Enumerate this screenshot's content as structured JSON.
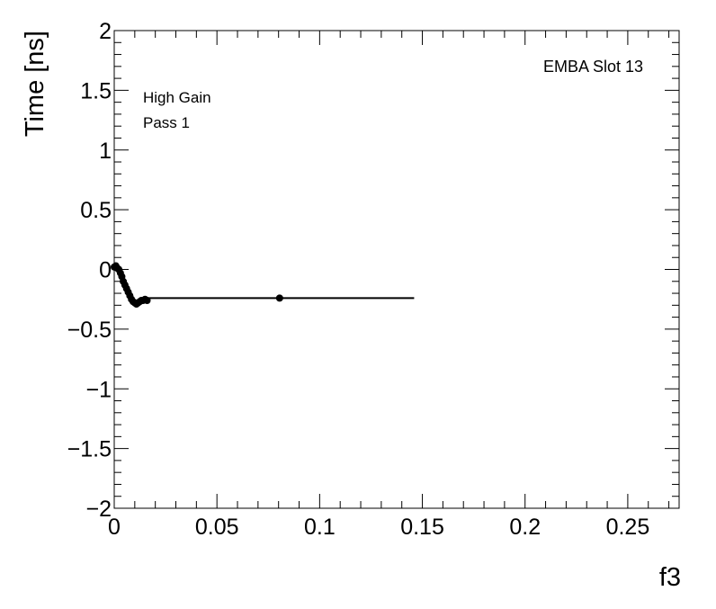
{
  "chart_data": {
    "type": "scatter",
    "title": "",
    "xlabel": "f3",
    "ylabel": "Time [ns]",
    "xlim": [
      0,
      0.275
    ],
    "ylim": [
      -2,
      2
    ],
    "x_ticks": [
      "0",
      "0.05",
      "0.1",
      "0.15",
      "0.2",
      "0.25"
    ],
    "x_tick_values": [
      0,
      0.05,
      0.1,
      0.15,
      0.2,
      0.25
    ],
    "y_ticks": [
      "2",
      "1.5",
      "1",
      "0.5",
      "0",
      "−0.5",
      "−1",
      "−1.5",
      "−2"
    ],
    "y_tick_values": [
      2,
      1.5,
      1,
      0.5,
      0,
      -0.5,
      -1,
      -1.5,
      -2
    ],
    "annotations": {
      "top_right": "EMBA Slot 13",
      "line1": "High Gain",
      "line2": "Pass 1"
    },
    "grid": false,
    "marker_color": "#000000",
    "series": [
      {
        "points": [
          {
            "x": 0.0,
            "y": 0.02
          },
          {
            "x": 0.0008,
            "y": 0.03
          },
          {
            "x": 0.0015,
            "y": 0.01
          },
          {
            "x": 0.0022,
            "y": 0.0
          },
          {
            "x": 0.003,
            "y": -0.03
          },
          {
            "x": 0.0037,
            "y": -0.06
          },
          {
            "x": 0.0044,
            "y": -0.1
          },
          {
            "x": 0.0052,
            "y": -0.13
          },
          {
            "x": 0.006,
            "y": -0.16
          },
          {
            "x": 0.0068,
            "y": -0.19
          },
          {
            "x": 0.0076,
            "y": -0.22
          },
          {
            "x": 0.0084,
            "y": -0.25
          },
          {
            "x": 0.0092,
            "y": -0.27
          },
          {
            "x": 0.01,
            "y": -0.28
          },
          {
            "x": 0.0108,
            "y": -0.29
          },
          {
            "x": 0.0116,
            "y": -0.28
          },
          {
            "x": 0.0124,
            "y": -0.27
          },
          {
            "x": 0.0132,
            "y": -0.26
          },
          {
            "x": 0.014,
            "y": -0.26
          },
          {
            "x": 0.015,
            "y": -0.25
          },
          {
            "x": 0.016,
            "y": -0.26
          }
        ]
      },
      {
        "points": [
          {
            "x": 0.0805,
            "y": -0.24,
            "xerr": 0.0655
          }
        ]
      }
    ]
  }
}
